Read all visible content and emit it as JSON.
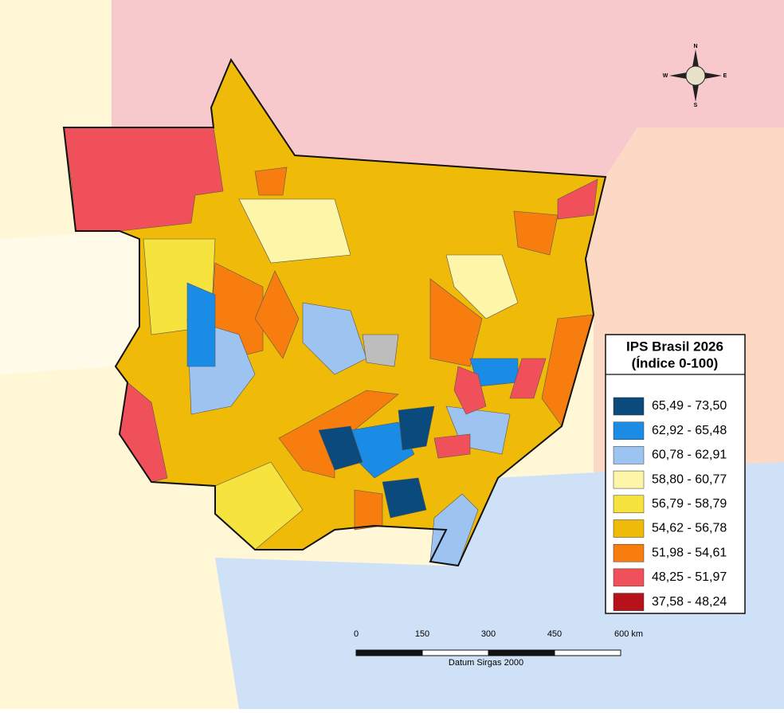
{
  "map": {
    "legend": {
      "title": [
        "IPS Brasil 2026",
        "(Índice 0-100)"
      ],
      "items": [
        {
          "label": "65,49 - 73,50",
          "color": "#0b4a7d"
        },
        {
          "label": "62,92 - 65,48",
          "color": "#1a8ce6"
        },
        {
          "label": "60,78 - 62,91",
          "color": "#9dc3f0"
        },
        {
          "label": "58,80 - 60,77",
          "color": "#fdf5a8"
        },
        {
          "label": "56,79 - 58,79",
          "color": "#f7e33e"
        },
        {
          "label": "54,62 - 56,78",
          "color": "#efbb08"
        },
        {
          "label": "51,98 - 54,61",
          "color": "#f77d0e"
        },
        {
          "label": "48,25 - 51,97",
          "color": "#f0505a"
        },
        {
          "label": "37,58 - 48,24",
          "color": "#b5121b"
        }
      ]
    },
    "scale_bar": {
      "labels": [
        "0",
        "150",
        "300",
        "450",
        "600 km"
      ],
      "datum": "Datum Sirgas 2000"
    },
    "compass": {
      "north": "N",
      "south": "S",
      "west": "W",
      "east": "E"
    }
  }
}
